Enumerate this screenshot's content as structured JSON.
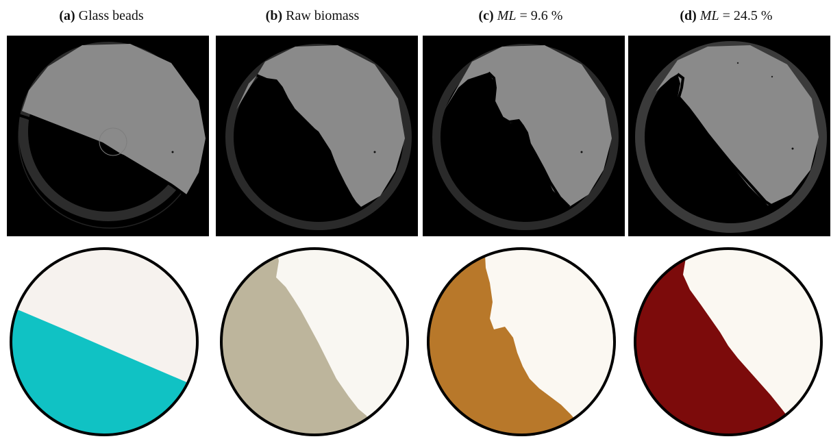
{
  "figure": {
    "panels": [
      {
        "tag": "(a)",
        "label": "Glass beads",
        "sim_color": "#10c2c4"
      },
      {
        "tag": "(b)",
        "label": "Raw biomass",
        "sim_color": "#bdb59c"
      },
      {
        "tag": "(c)",
        "var": "ML",
        "rest": " = 9.6 %",
        "sim_color": "#b8782a"
      },
      {
        "tag": "(d)",
        "var": "ML",
        "rest": " = 24.5 %",
        "sim_color": "#7c0b0b"
      }
    ]
  }
}
